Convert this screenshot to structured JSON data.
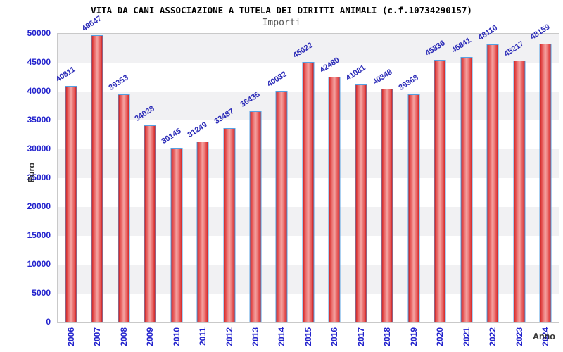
{
  "chart_data": {
    "type": "bar",
    "title": "VITA DA CANI ASSOCIAZIONE A TUTELA DEI DIRITTI ANIMALI (c.f.10734290157)",
    "subtitle": "Importi",
    "xlabel": "Anno",
    "ylabel": "Euro",
    "categories": [
      "2006",
      "2007",
      "2008",
      "2009",
      "2010",
      "2011",
      "2012",
      "2013",
      "2014",
      "2015",
      "2016",
      "2017",
      "2018",
      "2019",
      "2020",
      "2021",
      "2022",
      "2023",
      "2024"
    ],
    "values": [
      40811,
      49647,
      39353,
      34028,
      30145,
      31249,
      33487,
      36435,
      40032,
      45022,
      42480,
      41081,
      40348,
      39368,
      45336,
      45841,
      48110,
      45217,
      48159
    ],
    "ylim": [
      0,
      50000
    ],
    "yticks": [
      0,
      5000,
      10000,
      15000,
      20000,
      25000,
      30000,
      35000,
      40000,
      45000,
      50000
    ],
    "grid": "horizontal-bands-alternating",
    "legend": "none",
    "bar_value_labels_rotation_deg": -33,
    "x_tick_rotation_deg": -90,
    "colors": {
      "bar_fill_edge": "#c81e1e",
      "bar_fill_center": "#f5a5a3",
      "bar_border": "#54a1e3",
      "tick_label": "#2323cd",
      "value_label": "#2c2cb8",
      "band_gray": "#f1f1f3",
      "band_white": "#ffffff",
      "plot_border": "#c9c9c9",
      "title_color": "#000000",
      "subtitle_color": "#555555",
      "axis_label_color": "#333333"
    }
  }
}
